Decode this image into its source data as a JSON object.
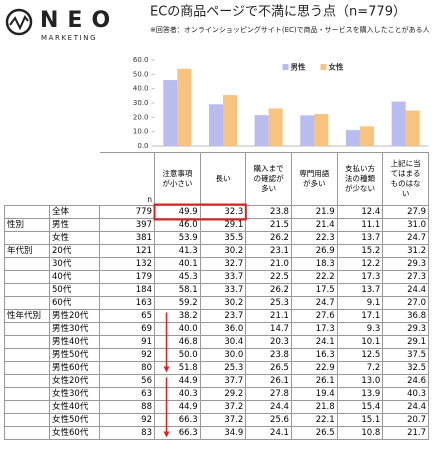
{
  "header": {
    "logo": "NEO",
    "logo_sub": "MARKETING",
    "title": "ECの商品ページで不満に思う点（n=779）",
    "note": "※回答者：オンラインショッピングサイト(EC)で商品・サービスを購入したことがある人"
  },
  "chart_data": {
    "type": "bar",
    "categories": [
      "注意事項\nが小さい",
      "長い",
      "購入まで\nの確認が\n多い",
      "専門用語\nが多い",
      "支払い方\n法の種類\nが少ない",
      "上記に当\nてはまる\nものはな\nい"
    ],
    "series": [
      {
        "name": "男性",
        "color": "#b8bcee",
        "values": [
          46.0,
          29.1,
          21.5,
          21.4,
          11.1,
          31.0
        ]
      },
      {
        "name": "女性",
        "color": "#f7c37f",
        "values": [
          53.9,
          35.5,
          26.2,
          22.3,
          13.7,
          24.7
        ]
      }
    ],
    "ylim": [
      0,
      60
    ],
    "yticks": [
      {
        "value": 0,
        "label": "0.0"
      },
      {
        "value": 10,
        "label": "10.0"
      },
      {
        "value": 20,
        "label": "20.0"
      },
      {
        "value": 30,
        "label": "30.0"
      },
      {
        "value": 40,
        "label": "40.0"
      },
      {
        "value": 50,
        "label": "50.0"
      },
      {
        "value": 60,
        "label": "60.0"
      }
    ],
    "legend": "top-right"
  },
  "table": {
    "n_label": "n",
    "rows": [
      {
        "label": "全体",
        "n": "779",
        "values": [
          "49.9",
          "32.3",
          "23.8",
          "21.9",
          "12.4",
          "27.9"
        ]
      },
      {
        "group": "性別",
        "label": "男性",
        "n": "397",
        "values": [
          "46.0",
          "29.1",
          "21.5",
          "21.4",
          "11.1",
          "31.0"
        ]
      },
      {
        "label": "女性",
        "n": "381",
        "values": [
          "53.9",
          "35.5",
          "26.2",
          "22.3",
          "13.7",
          "24.7"
        ]
      },
      {
        "group": "年代別",
        "label": "20代",
        "n": "121",
        "values": [
          "41.3",
          "30.2",
          "23.1",
          "26.9",
          "15.2",
          "31.2"
        ]
      },
      {
        "label": "30代",
        "n": "132",
        "values": [
          "40.1",
          "32.7",
          "21.0",
          "18.3",
          "12.2",
          "29.3"
        ]
      },
      {
        "label": "40代",
        "n": "179",
        "values": [
          "45.3",
          "33.7",
          "22.5",
          "22.2",
          "17.3",
          "27.3"
        ]
      },
      {
        "label": "50代",
        "n": "184",
        "values": [
          "58.1",
          "33.7",
          "26.2",
          "17.5",
          "13.7",
          "24.4"
        ]
      },
      {
        "label": "60代",
        "n": "163",
        "values": [
          "59.2",
          "30.2",
          "25.3",
          "24.7",
          "9.1",
          "27.0"
        ]
      },
      {
        "group": "性年代別",
        "label": "男性20代",
        "n": "65",
        "values": [
          "38.2",
          "23.7",
          "21.1",
          "27.6",
          "17.1",
          "36.8"
        ]
      },
      {
        "label": "男性30代",
        "n": "69",
        "values": [
          "40.0",
          "36.0",
          "14.7",
          "17.3",
          "9.3",
          "29.3"
        ]
      },
      {
        "label": "男性40代",
        "n": "91",
        "values": [
          "46.8",
          "30.4",
          "20.3",
          "24.1",
          "10.1",
          "29.1"
        ]
      },
      {
        "label": "男性50代",
        "n": "92",
        "values": [
          "50.0",
          "30.0",
          "23.8",
          "16.3",
          "12.5",
          "37.5"
        ]
      },
      {
        "label": "男性60代",
        "n": "80",
        "values": [
          "51.8",
          "25.3",
          "26.5",
          "22.9",
          "7.2",
          "32.5"
        ]
      },
      {
        "label": "女性20代",
        "n": "56",
        "values": [
          "44.9",
          "37.7",
          "26.1",
          "26.1",
          "13.0",
          "24.6"
        ]
      },
      {
        "label": "女性30代",
        "n": "63",
        "values": [
          "40.3",
          "29.2",
          "27.8",
          "19.4",
          "13.9",
          "40.3"
        ]
      },
      {
        "label": "女性40代",
        "n": "88",
        "values": [
          "44.9",
          "37.2",
          "24.4",
          "21.8",
          "15.4",
          "24.4"
        ]
      },
      {
        "label": "女性50代",
        "n": "92",
        "values": [
          "66.3",
          "37.2",
          "25.6",
          "22.1",
          "15.1",
          "20.7"
        ]
      },
      {
        "label": "女性60代",
        "n": "83",
        "values": [
          "66.3",
          "34.9",
          "24.1",
          "26.5",
          "10.8",
          "21.7"
        ]
      }
    ]
  }
}
